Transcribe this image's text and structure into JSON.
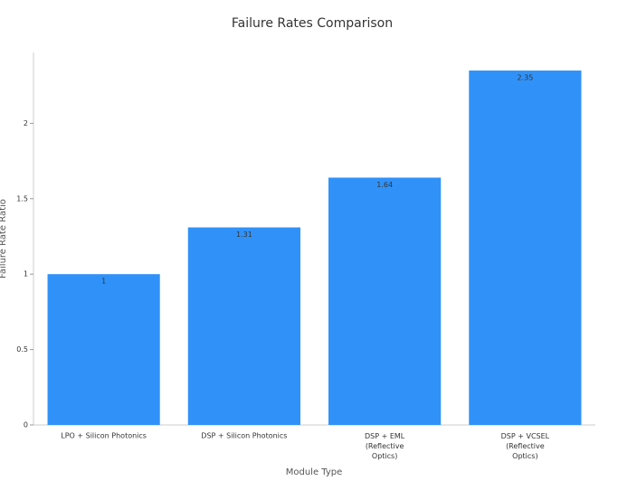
{
  "chart_data": {
    "type": "bar",
    "title": "Failure Rates Comparison",
    "x_label": "Module Type",
    "y_label": "Failure Rate Ratio",
    "categories": [
      "LPO + Silicon Photonics",
      "DSP + Silicon Photonics",
      "DSP + EML\n(Reflective\nOptics)",
      "DSP + VCSEL\n(Reflective\nOptics)"
    ],
    "values": [
      1,
      1.31,
      1.64,
      2.35
    ],
    "color": "#3092f8",
    "ylim": [
      0,
      2.47
    ],
    "yticks": [
      0,
      0.5,
      1,
      1.5,
      2
    ],
    "grid": false
  }
}
